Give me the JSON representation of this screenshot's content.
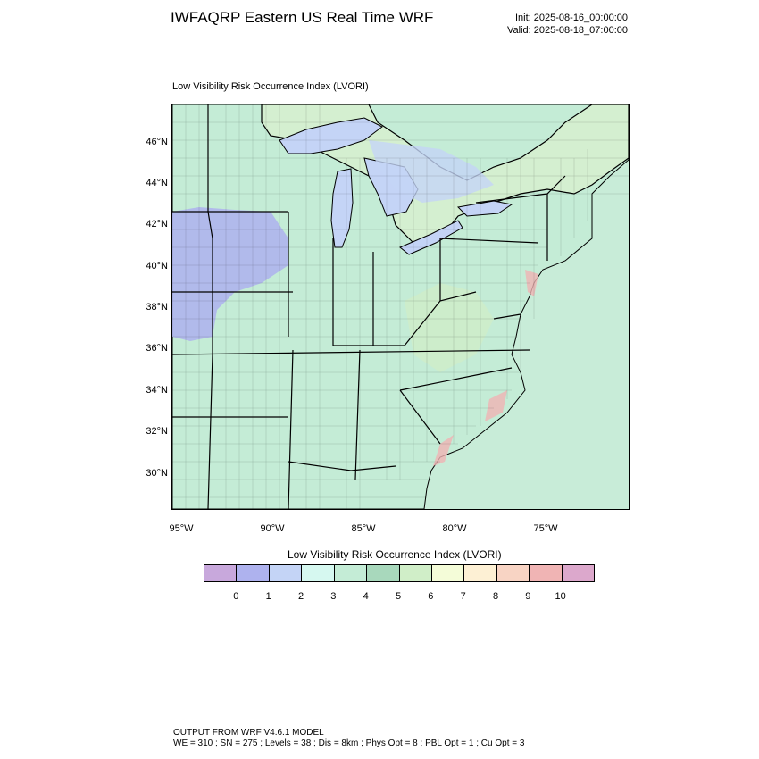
{
  "header": {
    "title": "IWFAQRP Eastern US Real Time WRF",
    "init": "Init: 2025-08-16_00:00:00",
    "valid": "Valid: 2025-08-18_07:00:00"
  },
  "plot_title": "Low Visibility Risk Occurrence Index   (LVORI)",
  "axes": {
    "lat_ticks": [
      "46°N",
      "44°N",
      "42°N",
      "40°N",
      "38°N",
      "36°N",
      "34°N",
      "32°N",
      "30°N"
    ],
    "lon_ticks": [
      "95°W",
      "90°W",
      "85°W",
      "80°W",
      "75°W"
    ]
  },
  "legend": {
    "title": "Low Visibility Risk Occurrence Index  (LVORI)",
    "labels": [
      "0",
      "1",
      "2",
      "3",
      "4",
      "5",
      "6",
      "7",
      "8",
      "9",
      "10"
    ],
    "colors": [
      "#c8a8dc",
      "#aeb2ee",
      "#c4d4f6",
      "#d6f8f0",
      "#c4ecd6",
      "#a8d8bc",
      "#d0eec8",
      "#f4fcd8",
      "#fdf0d4",
      "#f8d4c4",
      "#f0b4b4",
      "#dca8cc"
    ]
  },
  "footer": {
    "line1": "OUTPUT FROM WRF V4.6.1 MODEL",
    "line2": "WE = 310 ; SN = 275 ; Levels = 38 ; Dis = 8km ; Phys Opt = 8 ; PBL Opt = 1 ; Cu Opt = 3"
  },
  "map_colors": {
    "land_base": "#c4ecd6",
    "water": "#c8ecd8",
    "lake": "#c4d4f6",
    "low_index": "#aeb2ee",
    "high_index": "#f0b4b4",
    "mid_index": "#d0eec8"
  }
}
